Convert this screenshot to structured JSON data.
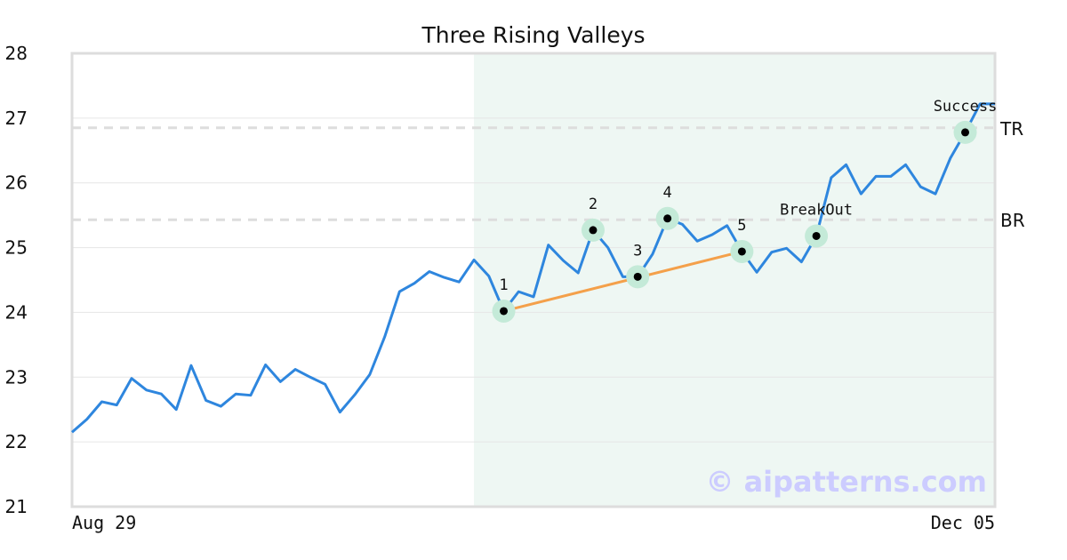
{
  "chart_data": {
    "type": "line",
    "title": "Three Rising Valleys",
    "xlabel": "",
    "ylabel": "",
    "ylim": [
      21,
      28
    ],
    "yticks": [
      21,
      22,
      23,
      24,
      25,
      26,
      27,
      28
    ],
    "x_start_label": "Aug 29",
    "x_end_label": "Dec 05",
    "grid": true,
    "series": [
      {
        "color": "#2e86de",
        "values": [
          22.15,
          22.35,
          22.62,
          22.57,
          22.98,
          22.8,
          22.74,
          22.5,
          23.18,
          22.64,
          22.55,
          22.74,
          22.72,
          23.19,
          22.93,
          23.12,
          23.0,
          22.89,
          22.46,
          22.73,
          23.04,
          23.62,
          24.32,
          24.45,
          24.63,
          24.54,
          24.47,
          24.81,
          24.56,
          24.02,
          24.32,
          24.24,
          25.04,
          24.8,
          24.61,
          25.27,
          25.0,
          24.55,
          24.55,
          24.9,
          25.45,
          25.36,
          25.1,
          25.2,
          25.34,
          24.94,
          24.62,
          24.93,
          24.99,
          24.78,
          25.18,
          26.08,
          26.28,
          25.83,
          26.1,
          26.1,
          26.28,
          25.94,
          25.83,
          26.38,
          26.78,
          27.22,
          27.22
        ]
      }
    ],
    "highlight_region": {
      "start_index": 27,
      "end_index": 62,
      "color": "#eef7f3"
    },
    "trend_line": {
      "from_index": 29,
      "to_index": 45,
      "color": "#f4a04a"
    },
    "levels": [
      {
        "label": "TR",
        "value": 26.85
      },
      {
        "label": "BR",
        "value": 25.43
      }
    ],
    "annotations": [
      {
        "label": "1",
        "index": 29,
        "value": 24.02
      },
      {
        "label": "2",
        "index": 35,
        "value": 25.27
      },
      {
        "label": "3",
        "index": 38,
        "value": 24.55
      },
      {
        "label": "4",
        "index": 40,
        "value": 25.45
      },
      {
        "label": "5",
        "index": 45,
        "value": 24.94
      },
      {
        "label": "BreakOut",
        "index": 50,
        "value": 25.18
      },
      {
        "label": "Success",
        "index": 60,
        "value": 26.78
      }
    ],
    "watermark": "© aipatterns.com",
    "colors": {
      "marker_halo": "#c4ead8",
      "marker_dot": "#000000",
      "grid": "#e6e6e6",
      "level_line": "#dddddd",
      "frame": "#dddddd"
    }
  }
}
